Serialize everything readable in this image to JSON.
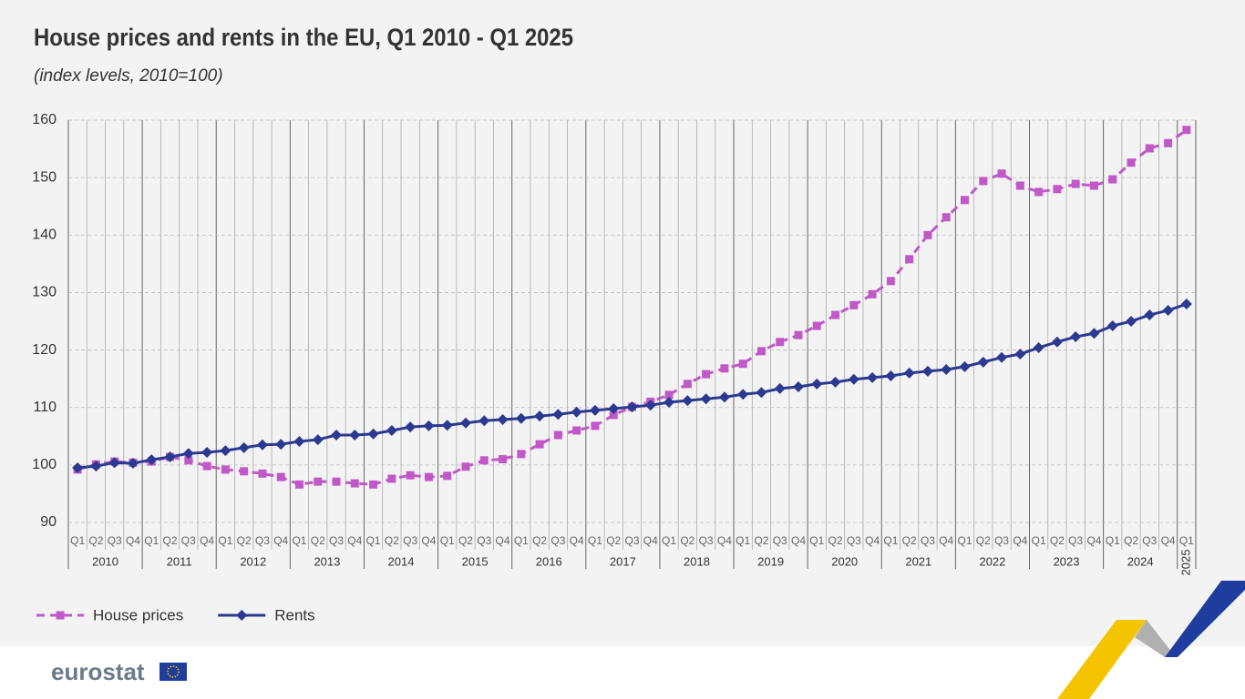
{
  "chart_data": {
    "type": "line",
    "title": "House prices and rents in the EU, Q1 2010 - Q1 2025",
    "subtitle": "(index levels, 2010=100)",
    "categories": [
      "Q1",
      "Q2",
      "Q3",
      "Q4",
      "Q1",
      "Q2",
      "Q3",
      "Q4",
      "Q1",
      "Q2",
      "Q3",
      "Q4",
      "Q1",
      "Q2",
      "Q3",
      "Q4",
      "Q1",
      "Q2",
      "Q3",
      "Q4",
      "Q1",
      "Q2",
      "Q3",
      "Q4",
      "Q1",
      "Q2",
      "Q3",
      "Q4",
      "Q1",
      "Q2",
      "Q3",
      "Q4",
      "Q1",
      "Q2",
      "Q3",
      "Q4",
      "Q1",
      "Q2",
      "Q3",
      "Q4",
      "Q1",
      "Q2",
      "Q3",
      "Q4",
      "Q1",
      "Q2",
      "Q3",
      "Q4",
      "Q1",
      "Q2",
      "Q3",
      "Q4",
      "Q1",
      "Q2",
      "Q3",
      "Q4",
      "Q1",
      "Q2",
      "Q3",
      "Q4",
      "Q1"
    ],
    "years": [
      "2010",
      "2011",
      "2012",
      "2013",
      "2014",
      "2015",
      "2016",
      "2017",
      "2018",
      "2019",
      "2020",
      "2021",
      "2022",
      "2023",
      "2024",
      "2025"
    ],
    "series": [
      {
        "name": "House prices",
        "color": "#c058c8",
        "dashed": true,
        "marker": "square",
        "values": [
          99.2,
          100.1,
          100.6,
          100.4,
          100.6,
          101.4,
          100.8,
          99.8,
          99.2,
          98.9,
          98.5,
          97.9,
          96.6,
          97.1,
          97.1,
          96.8,
          96.6,
          97.6,
          98.2,
          97.9,
          98.1,
          99.7,
          100.8,
          101.0,
          101.9,
          103.6,
          105.2,
          106.0,
          106.8,
          108.7,
          110.1,
          111.0,
          112.2,
          114.1,
          115.8,
          116.8,
          117.6,
          119.8,
          121.4,
          122.6,
          124.2,
          126.1,
          127.8,
          129.7,
          132.0,
          135.8,
          140.0,
          143.1,
          146.1,
          149.4,
          150.7,
          148.6,
          147.5,
          148.0,
          148.9,
          148.6,
          149.7,
          152.6,
          155.1,
          156.0,
          158.3
        ]
      },
      {
        "name": "Rents",
        "color": "#2b3990",
        "dashed": false,
        "marker": "diamond",
        "values": [
          99.5,
          99.8,
          100.4,
          100.3,
          100.9,
          101.4,
          102.0,
          102.2,
          102.5,
          103.0,
          103.5,
          103.6,
          104.1,
          104.4,
          105.2,
          105.2,
          105.4,
          106.0,
          106.6,
          106.8,
          106.9,
          107.3,
          107.7,
          107.9,
          108.1,
          108.5,
          108.8,
          109.2,
          109.5,
          109.8,
          110.1,
          110.4,
          110.9,
          111.2,
          111.5,
          111.8,
          112.3,
          112.6,
          113.3,
          113.6,
          114.1,
          114.4,
          114.9,
          115.2,
          115.5,
          116.0,
          116.3,
          116.6,
          117.1,
          117.9,
          118.7,
          119.3,
          120.4,
          121.4,
          122.3,
          122.9,
          124.2,
          125.0,
          126.1,
          126.9,
          128.0
        ]
      }
    ],
    "ylim": [
      90,
      160
    ],
    "yticks": [
      90,
      100,
      110,
      120,
      130,
      140,
      150,
      160
    ],
    "grid": true,
    "legend": "bottom-left"
  },
  "logo": "eurostat"
}
